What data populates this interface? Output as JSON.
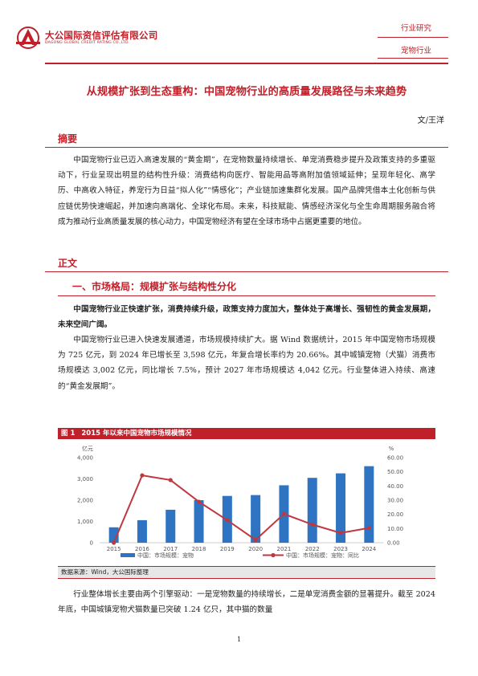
{
  "header": {
    "company_cn": "大公国际资信评估有限公司",
    "company_en": "DAGONG GLOBAL CREDIT RATING CO.,LTD.",
    "tag_category": "行业研究",
    "tag_industry": "宠物行业"
  },
  "title": "从规模扩张到生态重构：中国宠物行业的高质量发展路径与未来趋势",
  "author": "文/王洋",
  "abstract": {
    "heading": "摘要",
    "text": "中国宠物行业已迈入高速发展的“黄金期”，在宠物数量持续增长、单宠消费稳步提升及政策支持的多重驱动下，行业呈现出明显的结构性升级：消费结构向医疗、智能用品等高附加值领域延伸；呈现年轻化、高学历、中高收入特征，养宠行为日益“拟人化”“情感化”；产业链加速集群化发展。国产品牌凭借本土化创新与供应链优势快速崛起，并加速向高端化、全球化布局。未来，科技赋能、情感经济深化与全生命周期服务融合将成为推动行业高质量发展的核心动力，中国宠物经济有望在全球市场中占据更重要的地位。"
  },
  "body": {
    "heading": "正文",
    "section1_heading": "一、市场格局：规模扩张与结构性分化",
    "lead_bold": "中国宠物行业正快速扩张，消费持续升级，政策支持力度加大，整体处于高增长、强韧性的黄金发展期，未来空间广阔。",
    "para1": "中国宠物行业已进入快速发展通道，市场规模持续扩大。据 Wind 数据统计，2015 年中国宠物市场规模为 725 亿元，到 2024 年已增长至 3,598 亿元，年复合增长率约为 20.66%。其中城镇宠物（犬猫）消费市场规模达 3,002 亿元，同比增长 7.5%，预计 2027 年市场规模达 4,042 亿元。行业整体进入持续、高速的“黄金发展期”。",
    "para2": "行业整体增长主要由两个引擎驱动：一是宠物数量的持续增长，二是单宠消费金额的显著提升。截至 2024 年底，中国城镇宠物犬猫数量已突破 1.24 亿只，其中猫的数量"
  },
  "figure": {
    "label": "图 1",
    "title": "2015 年以来中国宠物市场规模情况",
    "source": "数据来源：Wind，大公国际整理"
  },
  "chart_data": {
    "type": "bar",
    "categories": [
      "2015",
      "2016",
      "2017",
      "2018",
      "2019",
      "2020",
      "2021",
      "2022",
      "2023",
      "2024"
    ],
    "series": [
      {
        "name": "中国：市场规模：宠物",
        "type": "bar",
        "axis": "left",
        "color": "#2e74c2",
        "values": [
          725,
          1060,
          1550,
          2000,
          2200,
          2240,
          2700,
          3050,
          3260,
          3598
        ]
      },
      {
        "name": "中国：市场规模：宠物：同比",
        "type": "line",
        "axis": "right",
        "color": "#c0383f",
        "values": [
          0,
          47.5,
          44.2,
          28.9,
          15.9,
          2.0,
          20.3,
          12.8,
          6.9,
          10.4
        ]
      }
    ],
    "ylabel_left": "亿元",
    "ylabel_right": "%",
    "ylim_left": [
      0,
      4000
    ],
    "ylim_right": [
      0,
      60
    ],
    "yticks_left": [
      "0",
      "1,000",
      "2,000",
      "3,000",
      "4,000"
    ],
    "yticks_right": [
      "0.00",
      "10.00",
      "20.00",
      "30.00",
      "40.00",
      "50.00",
      "60.00"
    ],
    "grid": false,
    "legend_position": "bottom"
  },
  "page_number": "1"
}
